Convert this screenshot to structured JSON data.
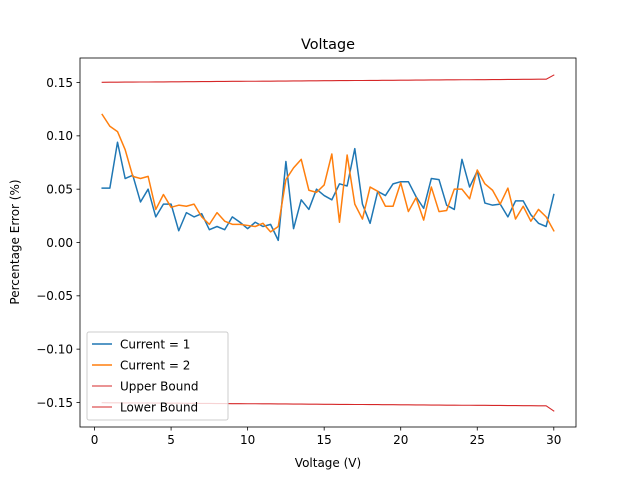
{
  "chart_data": {
    "type": "line",
    "title": "Voltage",
    "xlabel": "Voltage (V)",
    "ylabel": "Percentage Error (%)",
    "xlim": [
      -0.95,
      31.45
    ],
    "ylim": [
      -0.173,
      0.173
    ],
    "xticks": [
      0,
      5,
      10,
      15,
      20,
      25,
      30
    ],
    "yticks": [
      -0.15,
      -0.1,
      -0.05,
      0.0,
      0.05,
      0.1,
      0.15
    ],
    "xtick_labels": [
      "0",
      "5",
      "10",
      "15",
      "20",
      "25",
      "30"
    ],
    "ytick_labels": [
      "−0.15",
      "−0.10",
      "−0.05",
      "0.00",
      "0.05",
      "0.10",
      "0.15"
    ],
    "grid": false,
    "legend_position": "lower-left",
    "x": [
      0.5,
      1.0,
      1.5,
      2.0,
      2.5,
      3.0,
      3.5,
      4.0,
      4.5,
      5.0,
      5.5,
      6.0,
      6.5,
      7.0,
      7.5,
      8.0,
      8.5,
      9.0,
      9.5,
      10.0,
      10.5,
      11.0,
      11.5,
      12.0,
      12.5,
      13.0,
      13.5,
      14.0,
      14.5,
      15.0,
      15.5,
      16.0,
      16.5,
      17.0,
      17.5,
      18.0,
      18.5,
      19.0,
      19.5,
      20.0,
      20.5,
      21.0,
      21.5,
      22.0,
      22.5,
      23.0,
      23.5,
      24.0,
      24.5,
      25.0,
      25.5,
      26.0,
      26.5,
      27.0,
      27.5,
      28.0,
      28.5,
      29.0,
      29.5,
      30.0
    ],
    "series": [
      {
        "name": "Current = 1",
        "color": "#1f77b4",
        "values": [
          0.051,
          0.051,
          0.094,
          0.06,
          0.063,
          0.038,
          0.05,
          0.024,
          0.036,
          0.036,
          0.011,
          0.028,
          0.024,
          0.027,
          0.012,
          0.015,
          0.012,
          0.024,
          0.019,
          0.013,
          0.019,
          0.015,
          0.017,
          0.002,
          0.076,
          0.013,
          0.04,
          0.031,
          0.05,
          0.044,
          0.04,
          0.055,
          0.053,
          0.088,
          0.036,
          0.018,
          0.048,
          0.044,
          0.055,
          0.057,
          0.057,
          0.043,
          0.032,
          0.06,
          0.059,
          0.035,
          0.031,
          0.078,
          0.052,
          0.067,
          0.037,
          0.035,
          0.036,
          0.024,
          0.039,
          0.039,
          0.026,
          0.018,
          0.015,
          0.045
        ]
      },
      {
        "name": "Current = 2",
        "color": "#ff7f0e",
        "values": [
          0.12,
          0.109,
          0.104,
          0.087,
          0.062,
          0.06,
          0.062,
          0.031,
          0.045,
          0.033,
          0.035,
          0.034,
          0.036,
          0.024,
          0.017,
          0.028,
          0.02,
          0.017,
          0.017,
          0.016,
          0.015,
          0.018,
          0.01,
          0.015,
          0.059,
          0.07,
          0.078,
          0.049,
          0.047,
          0.054,
          0.083,
          0.019,
          0.082,
          0.036,
          0.022,
          0.052,
          0.048,
          0.034,
          0.034,
          0.056,
          0.029,
          0.042,
          0.021,
          0.052,
          0.029,
          0.03,
          0.05,
          0.05,
          0.041,
          0.068,
          0.055,
          0.049,
          0.036,
          0.051,
          0.022,
          0.034,
          0.02,
          0.031,
          0.024,
          0.011
        ]
      },
      {
        "name": "Upper Bound",
        "color": "#d62728",
        "values": [
          0.1502,
          0.1503,
          0.1503,
          0.1504,
          0.1504,
          0.1505,
          0.1505,
          0.1506,
          0.1506,
          0.1507,
          0.1507,
          0.1508,
          0.1508,
          0.1509,
          0.1509,
          0.151,
          0.151,
          0.1511,
          0.1511,
          0.1512,
          0.1512,
          0.1513,
          0.1513,
          0.1514,
          0.1514,
          0.1515,
          0.1515,
          0.1516,
          0.1516,
          0.1517,
          0.1517,
          0.1518,
          0.1518,
          0.1519,
          0.1519,
          0.152,
          0.152,
          0.1521,
          0.1521,
          0.1522,
          0.1522,
          0.1523,
          0.1523,
          0.1524,
          0.1524,
          0.1525,
          0.1525,
          0.1526,
          0.1526,
          0.1527,
          0.1527,
          0.1528,
          0.1528,
          0.1529,
          0.1529,
          0.153,
          0.153,
          0.1531,
          0.1531,
          0.157
        ]
      },
      {
        "name": "Lower Bound",
        "color": "#d62728",
        "values": [
          -0.1502,
          -0.1503,
          -0.1503,
          -0.1504,
          -0.1504,
          -0.1505,
          -0.1505,
          -0.1506,
          -0.1506,
          -0.1507,
          -0.1507,
          -0.1508,
          -0.1508,
          -0.1509,
          -0.1509,
          -0.151,
          -0.151,
          -0.1511,
          -0.1511,
          -0.1512,
          -0.1512,
          -0.1513,
          -0.1513,
          -0.1514,
          -0.1514,
          -0.1515,
          -0.1515,
          -0.1516,
          -0.1516,
          -0.1517,
          -0.1517,
          -0.1518,
          -0.1518,
          -0.1519,
          -0.1519,
          -0.152,
          -0.152,
          -0.1521,
          -0.1521,
          -0.1522,
          -0.1522,
          -0.1523,
          -0.1523,
          -0.1524,
          -0.1524,
          -0.1525,
          -0.1525,
          -0.1526,
          -0.1526,
          -0.1527,
          -0.1527,
          -0.1528,
          -0.1528,
          -0.1529,
          -0.1529,
          -0.153,
          -0.153,
          -0.1531,
          -0.1531,
          -0.158
        ]
      }
    ]
  }
}
